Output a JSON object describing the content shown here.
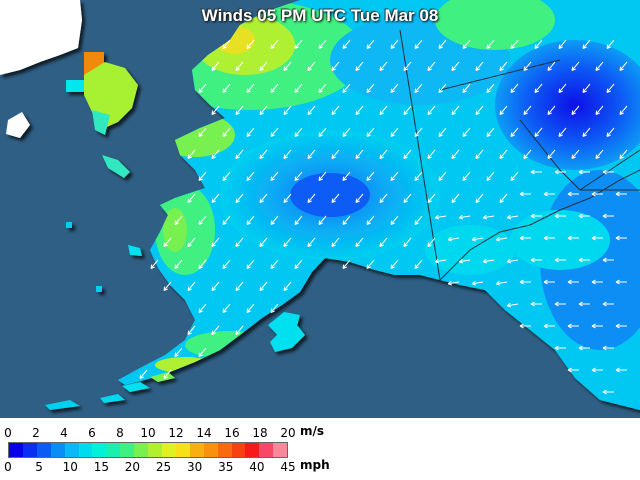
{
  "title": "Winds 05 PM UTC Tue Mar 08",
  "legend": {
    "ms_label": "m/s",
    "mph_label": "mph",
    "ms_ticks": [
      "0",
      "2",
      "4",
      "6",
      "8",
      "10",
      "12",
      "14",
      "16",
      "18",
      "20"
    ],
    "mph_ticks": [
      "0",
      "5",
      "10",
      "15",
      "20",
      "25",
      "30",
      "35",
      "40",
      "45"
    ],
    "colors": [
      "#0a00e6",
      "#0a2ff2",
      "#0a5cf5",
      "#0a8ef5",
      "#0ab8f5",
      "#00dcef",
      "#00f0d8",
      "#18f0b0",
      "#40f080",
      "#78f050",
      "#b0f030",
      "#e0f020",
      "#f8e018",
      "#f8b010",
      "#f89010",
      "#f86a10",
      "#f84010",
      "#f81a18",
      "#f8486a",
      "#f8889a"
    ]
  }
}
